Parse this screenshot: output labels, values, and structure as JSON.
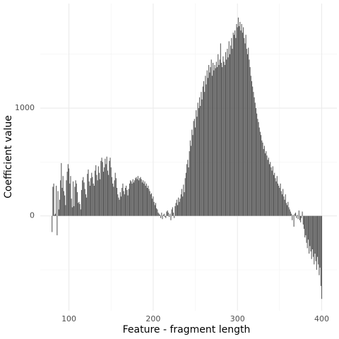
{
  "chart_data": {
    "type": "bar",
    "xlabel": "Feature - fragment length",
    "ylabel": "Coefficient value",
    "color": "#595959",
    "grid": true,
    "xlim": [
      66,
      418
    ],
    "ylim": [
      -880,
      1970
    ],
    "xticks": [
      100,
      200,
      300,
      400
    ],
    "yticks": [
      0,
      1000
    ],
    "x_minor_ticks": [
      150,
      250,
      350
    ],
    "y_minor_ticks": [
      -500,
      500,
      1500
    ],
    "x": [
      80,
      81,
      82,
      83,
      84,
      85,
      86,
      87,
      88,
      89,
      90,
      91,
      92,
      93,
      94,
      95,
      96,
      97,
      98,
      99,
      100,
      101,
      102,
      103,
      104,
      105,
      106,
      107,
      108,
      109,
      110,
      111,
      112,
      113,
      114,
      115,
      116,
      117,
      118,
      119,
      120,
      121,
      122,
      123,
      124,
      125,
      126,
      127,
      128,
      129,
      130,
      131,
      132,
      133,
      134,
      135,
      136,
      137,
      138,
      139,
      140,
      141,
      142,
      143,
      144,
      145,
      146,
      147,
      148,
      149,
      150,
      151,
      152,
      153,
      154,
      155,
      156,
      157,
      158,
      159,
      160,
      161,
      162,
      163,
      164,
      165,
      166,
      167,
      168,
      169,
      170,
      171,
      172,
      173,
      174,
      175,
      176,
      177,
      178,
      179,
      180,
      181,
      182,
      183,
      184,
      185,
      186,
      187,
      188,
      189,
      190,
      191,
      192,
      193,
      194,
      195,
      196,
      197,
      198,
      199,
      200,
      201,
      202,
      203,
      204,
      205,
      206,
      207,
      208,
      209,
      210,
      211,
      212,
      213,
      214,
      215,
      216,
      217,
      218,
      219,
      220,
      221,
      222,
      223,
      224,
      225,
      226,
      227,
      228,
      229,
      230,
      231,
      232,
      233,
      234,
      235,
      236,
      237,
      238,
      239,
      240,
      241,
      242,
      243,
      244,
      245,
      246,
      247,
      248,
      249,
      250,
      251,
      252,
      253,
      254,
      255,
      256,
      257,
      258,
      259,
      260,
      261,
      262,
      263,
      264,
      265,
      266,
      267,
      268,
      269,
      270,
      271,
      272,
      273,
      274,
      275,
      276,
      277,
      278,
      279,
      280,
      281,
      282,
      283,
      284,
      285,
      286,
      287,
      288,
      289,
      290,
      291,
      292,
      293,
      294,
      295,
      296,
      297,
      298,
      299,
      300,
      301,
      302,
      303,
      304,
      305,
      306,
      307,
      308,
      309,
      310,
      311,
      312,
      313,
      314,
      315,
      316,
      317,
      318,
      319,
      320,
      321,
      322,
      323,
      324,
      325,
      326,
      327,
      328,
      329,
      330,
      331,
      332,
      333,
      334,
      335,
      336,
      337,
      338,
      339,
      340,
      341,
      342,
      343,
      344,
      345,
      346,
      347,
      348,
      349,
      350,
      351,
      352,
      353,
      354,
      355,
      356,
      357,
      358,
      359,
      360,
      361,
      362,
      363,
      364,
      365,
      366,
      367,
      368,
      369,
      370,
      371,
      372,
      373,
      374,
      375,
      376,
      377,
      378,
      379,
      380,
      381,
      382,
      383,
      384,
      385,
      386,
      387,
      388,
      389,
      390,
      391,
      392,
      393,
      394,
      395,
      396,
      397,
      398,
      399,
      400
    ],
    "values": [
      -150,
      270,
      300,
      10,
      20,
      280,
      -180,
      230,
      60,
      150,
      330,
      490,
      260,
      370,
      230,
      190,
      100,
      330,
      410,
      480,
      440,
      300,
      370,
      160,
      80,
      320,
      90,
      270,
      330,
      300,
      220,
      120,
      130,
      110,
      60,
      240,
      330,
      360,
      310,
      250,
      200,
      170,
      390,
      430,
      320,
      280,
      350,
      400,
      360,
      300,
      280,
      420,
      470,
      380,
      330,
      460,
      400,
      340,
      510,
      540,
      500,
      410,
      450,
      530,
      480,
      550,
      420,
      380,
      510,
      540,
      450,
      360,
      300,
      270,
      330,
      400,
      350,
      260,
      200,
      170,
      150,
      220,
      180,
      260,
      300,
      230,
      200,
      260,
      280,
      240,
      190,
      250,
      300,
      330,
      320,
      300,
      340,
      310,
      330,
      350,
      360,
      340,
      370,
      330,
      350,
      360,
      340,
      310,
      330,
      300,
      320,
      280,
      300,
      260,
      280,
      250,
      230,
      200,
      210,
      160,
      180,
      130,
      100,
      120,
      70,
      60,
      30,
      20,
      10,
      -20,
      30,
      -30,
      10,
      20,
      -10,
      -20,
      40,
      50,
      30,
      -10,
      20,
      -40,
      60,
      80,
      30,
      -20,
      90,
      120,
      150,
      100,
      170,
      130,
      160,
      200,
      250,
      180,
      290,
      220,
      350,
      400,
      480,
      520,
      450,
      600,
      700,
      650,
      800,
      750,
      880,
      900,
      820,
      980,
      920,
      1050,
      1000,
      1100,
      1020,
      1150,
      1080,
      1200,
      1250,
      1150,
      1300,
      1220,
      1350,
      1280,
      1400,
      1330,
      1380,
      1450,
      1300,
      1420,
      1350,
      1400,
      1370,
      1430,
      1380,
      1500,
      1400,
      1450,
      1600,
      1420,
      1380,
      1480,
      1430,
      1400,
      1520,
      1450,
      1550,
      1470,
      1620,
      1500,
      1580,
      1650,
      1550,
      1700,
      1680,
      1720,
      1650,
      1780,
      1750,
      1840,
      1760,
      1800,
      1720,
      1780,
      1700,
      1750,
      1650,
      1600,
      1680,
      1550,
      1500,
      1560,
      1450,
      1380,
      1300,
      1250,
      1200,
      1150,
      1100,
      1050,
      1000,
      950,
      900,
      870,
      820,
      780,
      750,
      700,
      680,
      620,
      650,
      580,
      600,
      560,
      520,
      540,
      480,
      500,
      450,
      420,
      460,
      380,
      400,
      350,
      320,
      370,
      300,
      280,
      260,
      300,
      230,
      200,
      250,
      180,
      150,
      200,
      120,
      100,
      130,
      80,
      60,
      40,
      20,
      -40,
      10,
      -100,
      20,
      30,
      -20,
      10,
      -30,
      50,
      -40,
      -60,
      -20,
      40,
      -80,
      -120,
      -200,
      -180,
      -250,
      -300,
      -220,
      -350,
      -280,
      -330,
      -400,
      -310,
      -380,
      -450,
      -350,
      -420,
      -500,
      -380,
      -450,
      -550,
      -480,
      -650,
      -770
    ]
  }
}
